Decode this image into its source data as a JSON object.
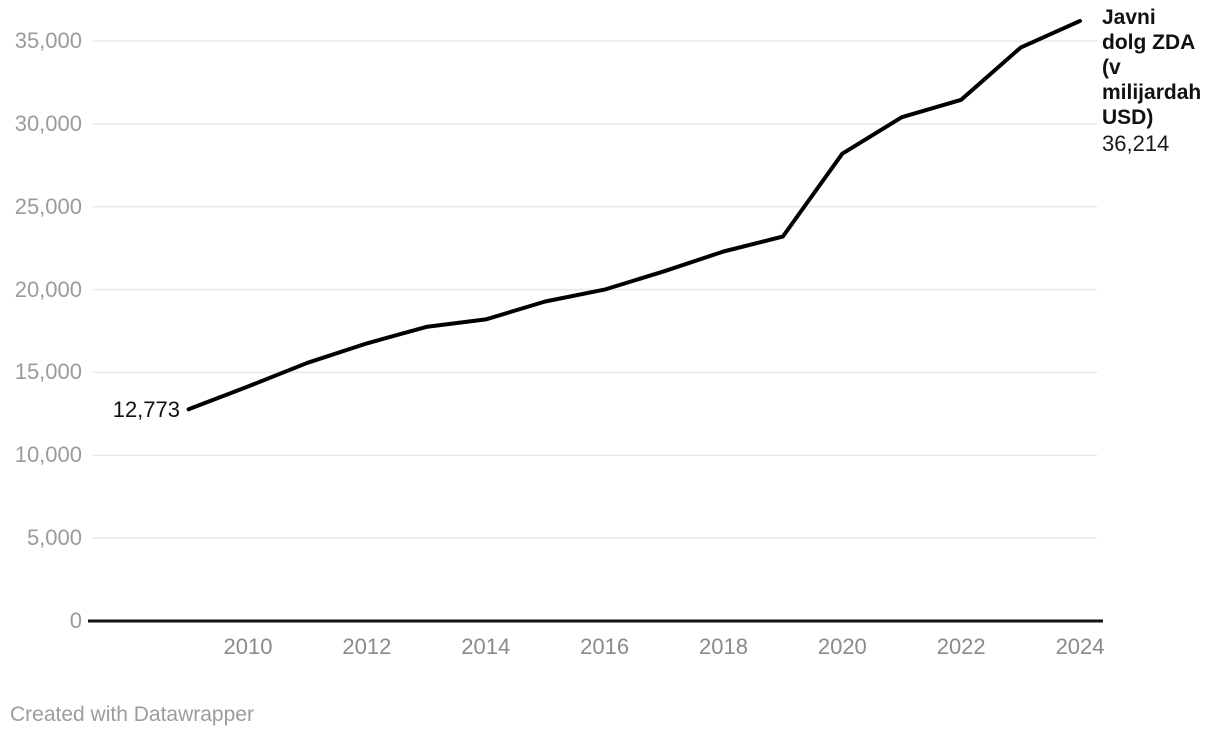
{
  "chart_data": {
    "type": "line",
    "title": "Javni dolg ZDA (v milijardah USD)",
    "title_lines": [
      "Javni",
      "dolg ZDA",
      "(v",
      "milijardah",
      "USD)"
    ],
    "series": [
      {
        "name": "Javni dolg ZDA (v milijardah USD)",
        "x": [
          2009,
          2010,
          2011,
          2012,
          2013,
          2014,
          2015,
          2016,
          2017,
          2018,
          2019,
          2020,
          2021,
          2022,
          2023,
          2024
        ],
        "values": [
          12773,
          14150,
          15580,
          16750,
          17750,
          18200,
          19280,
          20000,
          21100,
          22300,
          23200,
          28200,
          30400,
          31450,
          34600,
          36214
        ]
      }
    ],
    "first_value_label": "12,773",
    "last_value_label": "36,214",
    "x_axis": {
      "ticks": [
        2010,
        2012,
        2014,
        2016,
        2018,
        2020,
        2022,
        2024
      ],
      "tick_labels": [
        "2010",
        "2012",
        "2014",
        "2016",
        "2018",
        "2020",
        "2022",
        "2024"
      ]
    },
    "y_axis": {
      "ticks": [
        0,
        5000,
        10000,
        15000,
        20000,
        25000,
        30000,
        35000
      ],
      "tick_labels": [
        "0",
        "5,000",
        "10,000",
        "15,000",
        "20,000",
        "25,000",
        "30,000",
        "35,000"
      ],
      "range": [
        0,
        35000
      ]
    },
    "grid": "horizontal",
    "legend_position": "end-of-line-label",
    "colors": {
      "line": "#000000",
      "grid": "#e8e8e8",
      "axis": "#131313",
      "axis_tick_text": "#8f8f8f",
      "label_text": "#111111"
    }
  },
  "footer": {
    "attribution": "Created with Datawrapper"
  }
}
